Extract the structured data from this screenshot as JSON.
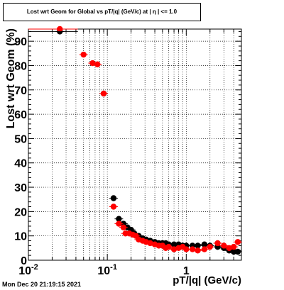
{
  "chart_data": {
    "type": "scatter",
    "title": "Lost wrt Geom for Global vs pT/|q| (GeV/c) at | η | <= 1.0",
    "xlabel": "pT/|q| (GeV/c)",
    "ylabel": "Lost wrt Geom (%)",
    "x_scale": "log",
    "xlim": [
      0.01,
      5
    ],
    "ylim": [
      0,
      95
    ],
    "grid": true,
    "x_tick_labels": [
      {
        "value": 0.01,
        "label": "10",
        "exp": "-2"
      },
      {
        "value": 0.1,
        "label": "10",
        "exp": "-1"
      },
      {
        "value": 1,
        "label": "1",
        "exp": ""
      }
    ],
    "y_ticks": [
      0,
      10,
      20,
      30,
      40,
      50,
      60,
      70,
      80,
      90
    ],
    "series": [
      {
        "color": "#000000",
        "points": [
          [
            0.025,
            94
          ],
          [
            0.09,
            68.5
          ],
          [
            0.12,
            25.5
          ],
          [
            0.14,
            17
          ],
          [
            0.16,
            15
          ],
          [
            0.18,
            13.5
          ],
          [
            0.2,
            12.5
          ],
          [
            0.22,
            11
          ],
          [
            0.25,
            10
          ],
          [
            0.28,
            9
          ],
          [
            0.31,
            8.5
          ],
          [
            0.35,
            8
          ],
          [
            0.4,
            7.5
          ],
          [
            0.45,
            7
          ],
          [
            0.5,
            7
          ],
          [
            0.55,
            7
          ],
          [
            0.6,
            6.5
          ],
          [
            0.7,
            6.5
          ],
          [
            0.8,
            6.5
          ],
          [
            0.9,
            6
          ],
          [
            1.0,
            6
          ],
          [
            1.2,
            6
          ],
          [
            1.4,
            6
          ],
          [
            1.7,
            6.5
          ],
          [
            2.0,
            6
          ],
          [
            2.5,
            5.5
          ],
          [
            3.0,
            5
          ],
          [
            3.5,
            4
          ],
          [
            4.0,
            3.5
          ],
          [
            4.5,
            3.5
          ]
        ]
      },
      {
        "color": "#ff0000",
        "points": [
          [
            0.025,
            95
          ],
          [
            0.05,
            84.5
          ],
          [
            0.065,
            81
          ],
          [
            0.075,
            80.5
          ],
          [
            0.09,
            68.5
          ],
          [
            0.12,
            22
          ],
          [
            0.14,
            15
          ],
          [
            0.16,
            13.5
          ],
          [
            0.17,
            11
          ],
          [
            0.19,
            11
          ],
          [
            0.21,
            10.5
          ],
          [
            0.23,
            10
          ],
          [
            0.25,
            8.5
          ],
          [
            0.28,
            8
          ],
          [
            0.31,
            7.5
          ],
          [
            0.35,
            7
          ],
          [
            0.4,
            6.5
          ],
          [
            0.45,
            6
          ],
          [
            0.5,
            6
          ],
          [
            0.55,
            5
          ],
          [
            0.6,
            5.5
          ],
          [
            0.7,
            4.5
          ],
          [
            0.8,
            5
          ],
          [
            0.9,
            5.5
          ],
          [
            1.0,
            4.5
          ],
          [
            1.2,
            4.5
          ],
          [
            1.4,
            4
          ],
          [
            1.7,
            4.5
          ],
          [
            2.0,
            5.5
          ],
          [
            2.5,
            7
          ],
          [
            3.0,
            6
          ],
          [
            3.5,
            5
          ],
          [
            4.0,
            5.5
          ],
          [
            4.5,
            7.5
          ]
        ]
      }
    ]
  },
  "footer": {
    "timestamp": "Mon Dec 20 21:19:15 2021"
  }
}
